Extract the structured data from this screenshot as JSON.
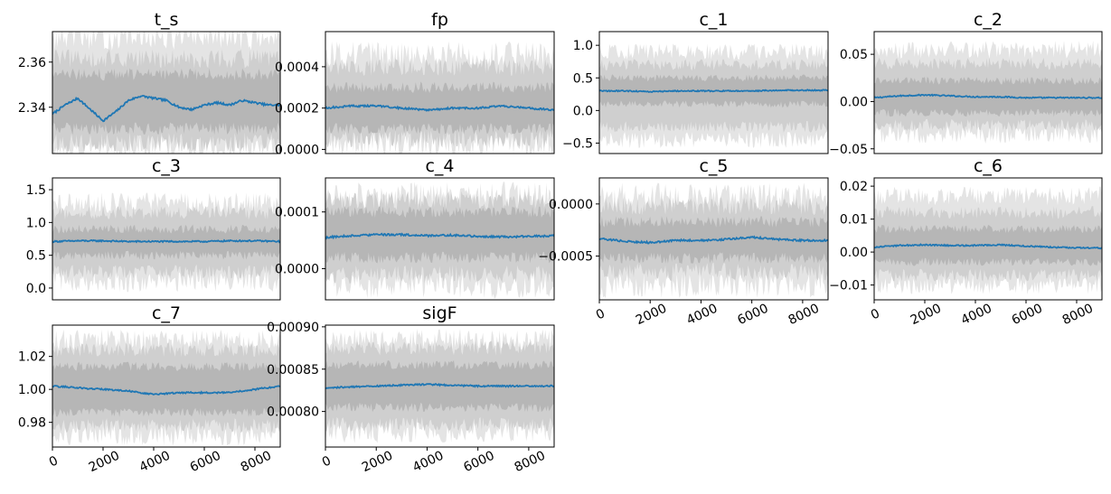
{
  "chart_data": [
    {
      "type": "line",
      "title": "t_s",
      "xlim": [
        0,
        9000
      ],
      "ylim": [
        2.3195,
        2.3735
      ],
      "yticks": [
        {
          "v": 2.34,
          "label": "2.34"
        },
        {
          "v": 2.36,
          "label": "2.36"
        }
      ],
      "xticks": [],
      "band_outer": [
        2.3215,
        2.3715
      ],
      "band_inner": [
        2.3245,
        2.3615
      ],
      "band_core": [
        2.3305,
        2.3545
      ],
      "noise": 0.004,
      "series": [
        {
          "x": [
            0,
            500,
            1000,
            1500,
            2000,
            2500,
            3000,
            3500,
            4000,
            4500,
            5000,
            5500,
            6000,
            6500,
            7000,
            7500,
            8000,
            8500,
            9000
          ],
          "values": [
            2.337,
            2.341,
            2.344,
            2.339,
            2.334,
            2.338,
            2.343,
            2.345,
            2.344,
            2.343,
            2.34,
            2.339,
            2.341,
            2.342,
            2.341,
            2.343,
            2.342,
            2.341,
            2.341
          ]
        }
      ]
    },
    {
      "type": "line",
      "title": "fp",
      "xlim": [
        0,
        9000
      ],
      "ylim": [
        -2e-05,
        0.00057
      ],
      "yticks": [
        {
          "v": 0.0,
          "label": "0.0000"
        },
        {
          "v": 0.0002,
          "label": "0.0002"
        },
        {
          "v": 0.0004,
          "label": "0.0004"
        }
      ],
      "xticks": [],
      "band_outer": [
        2e-05,
        0.00046
      ],
      "band_inner": [
        5e-05,
        0.0004
      ],
      "band_core": [
        0.0001,
        0.0003
      ],
      "noise": 4e-05,
      "series": [
        {
          "x": [
            0,
            1000,
            2000,
            3000,
            4000,
            5000,
            6000,
            7000,
            8000,
            9000
          ],
          "values": [
            0.0002,
            0.00021,
            0.00021,
            0.0002,
            0.00019,
            0.0002,
            0.0002,
            0.00021,
            0.0002,
            0.00019
          ]
        }
      ]
    },
    {
      "type": "line",
      "title": "c_1",
      "xlim": [
        0,
        9000
      ],
      "ylim": [
        -0.66,
        1.21
      ],
      "yticks": [
        {
          "v": -0.5,
          "label": "−0.5"
        },
        {
          "v": 0.0,
          "label": "0.0"
        },
        {
          "v": 0.5,
          "label": "0.5"
        },
        {
          "v": 1.0,
          "label": "1.0"
        }
      ],
      "xticks": [],
      "band_outer": [
        -0.45,
        0.9
      ],
      "band_inner": [
        -0.25,
        0.7
      ],
      "band_core": [
        0.1,
        0.5
      ],
      "noise": 0.08,
      "series": [
        {
          "x": [
            0,
            1000,
            2000,
            3000,
            4000,
            5000,
            6000,
            7000,
            8000,
            9000
          ],
          "values": [
            0.3,
            0.3,
            0.29,
            0.3,
            0.3,
            0.3,
            0.3,
            0.31,
            0.31,
            0.31
          ]
        }
      ]
    },
    {
      "type": "line",
      "title": "c_2",
      "xlim": [
        0,
        9000
      ],
      "ylim": [
        -0.055,
        0.074
      ],
      "yticks": [
        {
          "v": -0.05,
          "label": "−0.05"
        },
        {
          "v": 0.0,
          "label": "0.00"
        },
        {
          "v": 0.05,
          "label": "0.05"
        }
      ],
      "xticks": [],
      "band_outer": [
        -0.035,
        0.055
      ],
      "band_inner": [
        -0.025,
        0.04
      ],
      "band_core": [
        -0.012,
        0.022
      ],
      "noise": 0.006,
      "series": [
        {
          "x": [
            0,
            1000,
            2000,
            3000,
            4000,
            5000,
            6000,
            7000,
            8000,
            9000
          ],
          "values": [
            0.004,
            0.006,
            0.007,
            0.006,
            0.005,
            0.005,
            0.004,
            0.004,
            0.004,
            0.004
          ]
        }
      ]
    },
    {
      "type": "line",
      "title": "c_3",
      "xlim": [
        0,
        9000
      ],
      "ylim": [
        -0.18,
        1.68
      ],
      "yticks": [
        {
          "v": 0.0,
          "label": "0.0"
        },
        {
          "v": 0.5,
          "label": "0.5"
        },
        {
          "v": 1.0,
          "label": "1.0"
        },
        {
          "v": 1.5,
          "label": "1.5"
        }
      ],
      "xticks": [],
      "band_outer": [
        0.1,
        1.3
      ],
      "band_inner": [
        0.25,
        1.15
      ],
      "band_core": [
        0.5,
        0.9
      ],
      "noise": 0.1,
      "series": [
        {
          "x": [
            0,
            1000,
            2000,
            3000,
            4000,
            5000,
            6000,
            7000,
            8000,
            9000
          ],
          "values": [
            0.71,
            0.72,
            0.72,
            0.71,
            0.71,
            0.71,
            0.71,
            0.72,
            0.72,
            0.71
          ]
        }
      ]
    },
    {
      "type": "line",
      "title": "c_4",
      "xlim": [
        0,
        9000
      ],
      "ylim": [
        -5.5e-05,
        0.00016
      ],
      "yticks": [
        {
          "v": 0.0,
          "label": "0.0000"
        },
        {
          "v": 0.0001,
          "label": "0.0001"
        }
      ],
      "xticks": [],
      "band_outer": [
        -3e-05,
        0.00013
      ],
      "band_inner": [
        -1e-05,
        0.00012
      ],
      "band_core": [
        2e-05,
        0.0001
      ],
      "noise": 1.5e-05,
      "series": [
        {
          "x": [
            0,
            1000,
            2000,
            3000,
            4000,
            5000,
            6000,
            7000,
            8000,
            9000
          ],
          "values": [
            5.5e-05,
            5.8e-05,
            6e-05,
            6e-05,
            5.8e-05,
            5.9e-05,
            5.7e-05,
            5.6e-05,
            5.7e-05,
            5.8e-05
          ]
        }
      ]
    },
    {
      "type": "line",
      "title": "c_5",
      "xlim": [
        0,
        9000
      ],
      "ylim": [
        -0.00092,
        0.00025
      ],
      "yticks": [
        {
          "v": -0.0005,
          "label": "−0.0005"
        },
        {
          "v": 0.0,
          "label": "0.0000"
        }
      ],
      "xticks": [
        0,
        2000,
        4000,
        6000,
        8000
      ],
      "band_outer": [
        -0.00078,
        8e-05
      ],
      "band_inner": [
        -0.00065,
        -2e-05
      ],
      "band_core": [
        -0.00052,
        -0.00017
      ],
      "noise": 8e-05,
      "series": [
        {
          "x": [
            0,
            1000,
            2000,
            3000,
            4000,
            5000,
            6000,
            7000,
            8000,
            9000
          ],
          "values": [
            -0.00033,
            -0.00036,
            -0.00037,
            -0.00035,
            -0.00035,
            -0.00034,
            -0.00032,
            -0.00034,
            -0.00035,
            -0.00035
          ]
        }
      ]
    },
    {
      "type": "line",
      "title": "c_6",
      "xlim": [
        0,
        9000
      ],
      "ylim": [
        -0.0145,
        0.0225
      ],
      "yticks": [
        {
          "v": -0.01,
          "label": "−0.01"
        },
        {
          "v": 0.0,
          "label": "0.00"
        },
        {
          "v": 0.01,
          "label": "0.01"
        },
        {
          "v": 0.02,
          "label": "0.02"
        }
      ],
      "xticks": [
        0,
        2000,
        4000,
        6000,
        8000
      ],
      "band_outer": [
        -0.01,
        0.017
      ],
      "band_inner": [
        -0.007,
        0.012
      ],
      "band_core": [
        -0.003,
        0.007
      ],
      "noise": 0.0018,
      "series": [
        {
          "x": [
            0,
            1000,
            2000,
            3000,
            4000,
            5000,
            6000,
            7000,
            8000,
            9000
          ],
          "values": [
            0.0015,
            0.002,
            0.0022,
            0.002,
            0.002,
            0.0022,
            0.0018,
            0.0015,
            0.0013,
            0.0012
          ]
        }
      ]
    },
    {
      "type": "line",
      "title": "c_7",
      "xlim": [
        0,
        9000
      ],
      "ylim": [
        0.965,
        1.039
      ],
      "yticks": [
        {
          "v": 0.98,
          "label": "0.98"
        },
        {
          "v": 1.0,
          "label": "1.00"
        },
        {
          "v": 1.02,
          "label": "1.02"
        }
      ],
      "xticks": [
        0,
        2000,
        4000,
        6000,
        8000
      ],
      "band_outer": [
        0.972,
        1.03
      ],
      "band_inner": [
        0.978,
        1.024
      ],
      "band_core": [
        0.986,
        1.014
      ],
      "noise": 0.004,
      "series": [
        {
          "x": [
            0,
            1000,
            2000,
            3000,
            4000,
            5000,
            6000,
            7000,
            8000,
            9000
          ],
          "values": [
            1.002,
            1.001,
            1.0,
            0.999,
            0.997,
            0.998,
            0.998,
            0.998,
            1.0,
            1.002
          ]
        }
      ]
    },
    {
      "type": "line",
      "title": "sigF",
      "xlim": [
        0,
        9000
      ],
      "ylim": [
        0.000758,
        0.000902
      ],
      "yticks": [
        {
          "v": 0.0008,
          "label": "0.00080"
        },
        {
          "v": 0.00085,
          "label": "0.00085"
        },
        {
          "v": 0.0009,
          "label": "0.00090"
        }
      ],
      "xticks": [
        0,
        2000,
        4000,
        6000,
        8000
      ],
      "band_outer": [
        0.000775,
        0.000885
      ],
      "band_inner": [
        0.000785,
        0.000875
      ],
      "band_core": [
        0.000805,
        0.000855
      ],
      "noise": 8e-06,
      "series": [
        {
          "x": [
            0,
            1000,
            2000,
            3000,
            4000,
            5000,
            6000,
            7000,
            8000,
            9000
          ],
          "values": [
            0.000828,
            0.000829,
            0.00083,
            0.000831,
            0.000832,
            0.000831,
            0.00083,
            0.00083,
            0.00083,
            0.00083
          ]
        }
      ]
    }
  ],
  "colors": {
    "line": "#1f77b4",
    "band_outer": "#e4e4e4",
    "band_inner": "#cfcfcf",
    "band_core": "#b6b6b6"
  }
}
